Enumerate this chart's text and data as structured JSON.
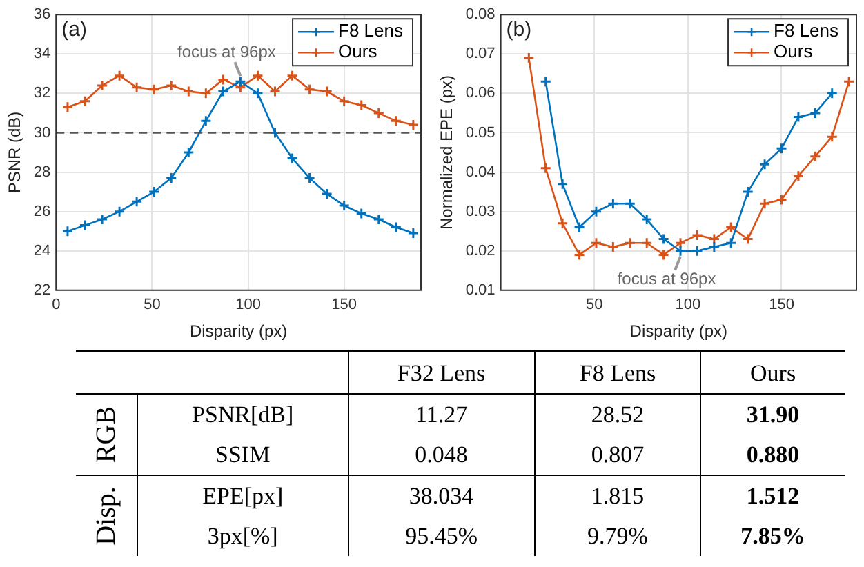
{
  "chart_data": [
    {
      "type": "line",
      "xlabel": "Disparity (px)",
      "ylabel": "PSNR (dB)",
      "x": [
        6,
        15,
        24,
        33,
        42,
        51,
        60,
        69,
        78,
        87,
        96,
        105,
        114,
        123,
        132,
        141,
        150,
        159,
        168,
        177,
        186
      ],
      "series": [
        {
          "name": "F8 Lens",
          "color": "#0072bd",
          "values": [
            25.0,
            25.3,
            25.6,
            26.0,
            26.5,
            27.0,
            27.7,
            29.0,
            30.6,
            32.1,
            32.6,
            32.0,
            30.0,
            28.7,
            27.7,
            26.9,
            26.3,
            25.9,
            25.6,
            25.2,
            24.9
          ]
        },
        {
          "name": "Ours",
          "color": "#d95319",
          "values": [
            31.3,
            31.6,
            32.4,
            32.9,
            32.3,
            32.2,
            32.4,
            32.1,
            32.0,
            32.7,
            32.3,
            32.9,
            32.1,
            32.9,
            32.2,
            32.1,
            31.6,
            31.4,
            31.0,
            30.6,
            30.4
          ]
        }
      ],
      "xlim": [
        0,
        190
      ],
      "xticks": [
        0,
        50,
        100,
        150
      ],
      "ylim": [
        22,
        36
      ],
      "yticks": [
        22,
        24,
        26,
        28,
        30,
        32,
        34,
        36
      ],
      "ref_lines": [
        {
          "axis": "y",
          "value": 30,
          "color": "#555555",
          "line_style": "dashed"
        }
      ],
      "annotations": [
        "(a)",
        {
          "text": "focus at 96px",
          "x": 96,
          "y": 32.6
        }
      ],
      "grid": true,
      "legend": "top right",
      "marker": "cross",
      "line_style": "solid"
    },
    {
      "type": "line",
      "xlabel": "Disparity (px)",
      "ylabel": "Normalized EPE (px)",
      "x": [
        15,
        24,
        33,
        42,
        51,
        60,
        69,
        78,
        87,
        96,
        105,
        114,
        123,
        132,
        141,
        150,
        159,
        168,
        177,
        186
      ],
      "series": [
        {
          "name": "F8 Lens",
          "color": "#0072bd",
          "values": [
            null,
            0.063,
            0.037,
            0.026,
            0.03,
            0.032,
            0.032,
            0.028,
            0.023,
            0.02,
            0.02,
            0.021,
            0.022,
            0.035,
            0.042,
            0.046,
            0.054,
            0.055,
            0.06,
            null
          ]
        },
        {
          "name": "Ours",
          "color": "#d95319",
          "values": [
            0.069,
            0.041,
            0.027,
            0.019,
            0.022,
            0.021,
            0.022,
            0.022,
            0.019,
            0.022,
            0.024,
            0.023,
            0.026,
            0.023,
            0.032,
            0.033,
            0.039,
            0.044,
            0.049,
            0.063
          ]
        }
      ],
      "xlim": [
        0,
        190
      ],
      "xticks": [
        50,
        100,
        150
      ],
      "ylim": [
        0.01,
        0.08
      ],
      "yticks": [
        0.01,
        0.02,
        0.03,
        0.04,
        0.05,
        0.06,
        0.07,
        0.08
      ],
      "annotations": [
        "(b)",
        {
          "text": "focus at 96px",
          "x": 96,
          "y": 0.02
        }
      ],
      "grid": true,
      "legend": "top right",
      "marker": "cross",
      "line_style": "solid"
    },
    {
      "type": "other",
      "categories": [
        "F32 Lens",
        "F8 Lens",
        "Ours"
      ],
      "y_categories": [
        "PSNR[dB]",
        "SSIM",
        "EPE[px]",
        "3px[%]"
      ],
      "cell_labels": [
        [
          "11.27",
          "28.52",
          "31.90"
        ],
        [
          "0.048",
          "0.807",
          "0.880"
        ],
        [
          "38.034",
          "1.815",
          "1.512"
        ],
        [
          "95.45%",
          "9.79%",
          "7.85%"
        ]
      ],
      "annotations": [
        "RGB",
        "Disp."
      ]
    }
  ]
}
